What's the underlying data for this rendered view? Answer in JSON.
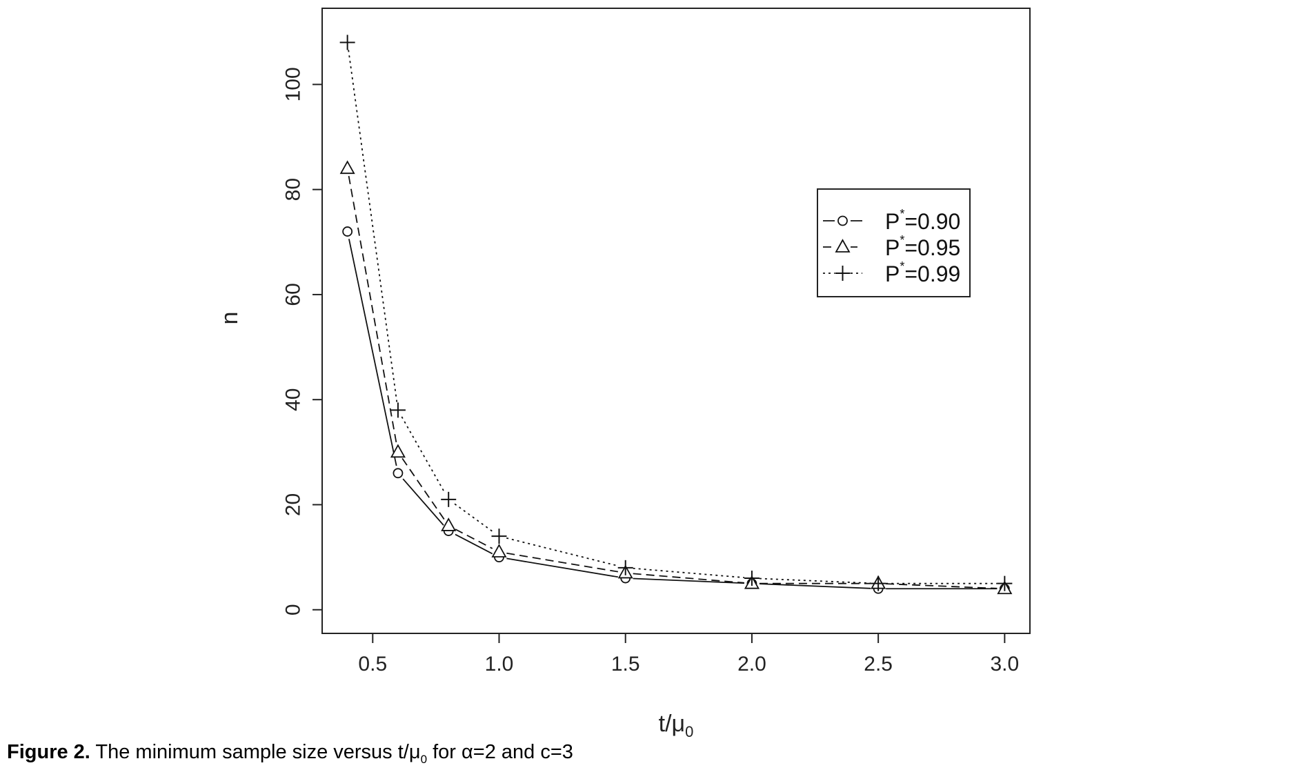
{
  "chart_data": {
    "type": "line",
    "xlabel": {
      "main": "t/μ",
      "sub": "0"
    },
    "ylabel": "n",
    "xlim": [
      0.3,
      3.1
    ],
    "ylim": [
      -4.5,
      114.5
    ],
    "xticks": [
      0.5,
      1.0,
      1.5,
      2.0,
      2.5,
      3.0
    ],
    "xtick_labels": [
      "0.5",
      "1.0",
      "1.5",
      "2.0",
      "2.5",
      "3.0"
    ],
    "yticks": [
      0,
      20,
      40,
      60,
      80,
      100
    ],
    "ytick_labels": [
      "0",
      "20",
      "40",
      "60",
      "80",
      "100"
    ],
    "grid": false,
    "legend_position": "top-right",
    "x": [
      0.4,
      0.6,
      0.8,
      1.0,
      1.5,
      2.0,
      2.5,
      3.0
    ],
    "series": [
      {
        "name": "P*=0.90",
        "legend_base": "P",
        "legend_sup": "*",
        "legend_value": "=0.90",
        "marker": "circle",
        "line": "solid",
        "values": [
          72,
          26,
          15,
          10,
          6,
          5,
          4,
          4
        ]
      },
      {
        "name": "P*=0.95",
        "legend_base": "P",
        "legend_sup": "*",
        "legend_value": "=0.95",
        "marker": "triangle",
        "line": "dashed",
        "values": [
          84,
          30,
          16,
          11,
          7,
          5,
          5,
          4
        ]
      },
      {
        "name": "P*=0.99",
        "legend_base": "P",
        "legend_sup": "*",
        "legend_value": "=0.99",
        "marker": "plus",
        "line": "dotted",
        "values": [
          108,
          38,
          21,
          14,
          8,
          6,
          5,
          5
        ]
      }
    ]
  },
  "caption": {
    "label": "Figure 2.",
    "text_before": " The minimum sample size versus t/μ",
    "text_sub": "0",
    "text_after": " for α=2 and c=3"
  }
}
